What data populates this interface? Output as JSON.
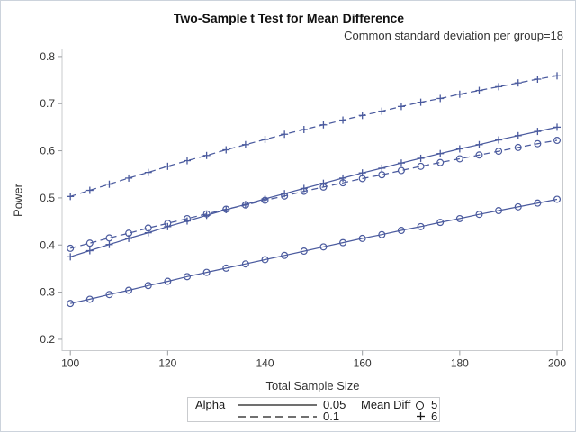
{
  "chart_data": {
    "type": "line",
    "title": "Two-Sample t Test for Mean Difference",
    "subtitle": "Common standard deviation per group=18",
    "xlabel": "Total Sample Size",
    "ylabel": "Power",
    "grid": false,
    "legend_position": "bottom",
    "xlim": [
      98.3,
      201.2
    ],
    "ylim": [
      0.176,
      0.816
    ],
    "x_ticks": [
      100,
      120,
      140,
      160,
      180,
      200
    ],
    "y_ticks": [
      0.2,
      0.3,
      0.4,
      0.5,
      0.6,
      0.7,
      0.8
    ],
    "x": [
      100,
      104,
      108,
      112,
      116,
      120,
      124,
      128,
      132,
      136,
      140,
      144,
      148,
      152,
      156,
      160,
      164,
      168,
      172,
      176,
      180,
      184,
      188,
      192,
      196,
      200
    ],
    "series": [
      {
        "id": "alpha005-diff5",
        "name": "Alpha=0.05, Mean Diff=5",
        "alpha": "0.05",
        "mean_diff": "5",
        "line": "solid",
        "marker": "circle",
        "values": [
          0.276,
          0.285,
          0.295,
          0.304,
          0.314,
          0.323,
          0.333,
          0.342,
          0.351,
          0.36,
          0.369,
          0.378,
          0.387,
          0.396,
          0.405,
          0.414,
          0.422,
          0.431,
          0.439,
          0.448,
          0.456,
          0.465,
          0.473,
          0.481,
          0.489,
          0.497
        ]
      },
      {
        "id": "alpha005-diff6",
        "name": "Alpha=0.05, Mean Diff=6",
        "alpha": "0.05",
        "mean_diff": "6",
        "line": "solid",
        "marker": "plus",
        "values": [
          0.375,
          0.388,
          0.401,
          0.414,
          0.426,
          0.439,
          0.451,
          0.463,
          0.475,
          0.486,
          0.498,
          0.509,
          0.52,
          0.531,
          0.542,
          0.553,
          0.563,
          0.574,
          0.584,
          0.594,
          0.604,
          0.613,
          0.623,
          0.632,
          0.641,
          0.65
        ]
      },
      {
        "id": "alpha01-diff5",
        "name": "Alpha=0.1, Mean Diff=5",
        "alpha": "0.1",
        "mean_diff": "5",
        "line": "dashed",
        "marker": "circle",
        "values": [
          0.393,
          0.404,
          0.415,
          0.425,
          0.436,
          0.446,
          0.456,
          0.466,
          0.476,
          0.485,
          0.495,
          0.504,
          0.514,
          0.523,
          0.532,
          0.541,
          0.549,
          0.558,
          0.567,
          0.575,
          0.583,
          0.591,
          0.599,
          0.607,
          0.615,
          0.622
        ]
      },
      {
        "id": "alpha01-diff6",
        "name": "Alpha=0.1, Mean Diff=6",
        "alpha": "0.1",
        "mean_diff": "6",
        "line": "dashed",
        "marker": "plus",
        "values": [
          0.503,
          0.516,
          0.529,
          0.542,
          0.554,
          0.567,
          0.579,
          0.59,
          0.602,
          0.613,
          0.624,
          0.635,
          0.645,
          0.655,
          0.665,
          0.675,
          0.684,
          0.694,
          0.703,
          0.711,
          0.72,
          0.728,
          0.736,
          0.744,
          0.752,
          0.759
        ]
      }
    ],
    "colors": {
      "series": "#4a5a9e",
      "frame": "#c9cbce",
      "tick": "#9a9da0",
      "tick_label": "#333333",
      "title": "#111111",
      "legend_symbol": "#1a1a1a"
    }
  },
  "legend": {
    "alpha_label": "Alpha",
    "alpha_solid_value": "0.05",
    "alpha_dashed_value": "0.1",
    "meandiff_label": "Mean Diff",
    "meandiff_circle_value": "5",
    "meandiff_plus_value": "6"
  }
}
